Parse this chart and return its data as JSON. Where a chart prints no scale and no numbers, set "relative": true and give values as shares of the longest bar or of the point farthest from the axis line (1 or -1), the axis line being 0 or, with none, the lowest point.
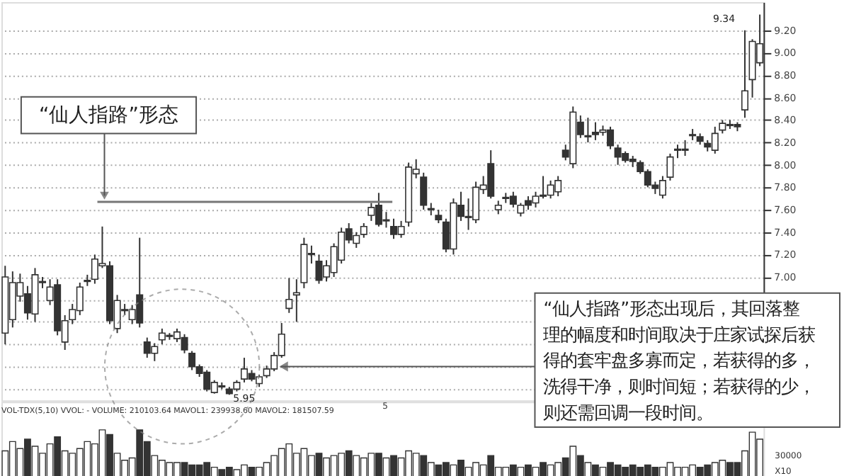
{
  "chart_data": [
    {
      "type": "candlestick",
      "color": "#333333",
      "grid": "y",
      "tick_labels": "y",
      "categories": [
        null,
        null,
        null,
        null,
        null,
        null,
        null,
        null,
        null,
        null,
        null,
        null,
        null,
        null,
        null,
        null,
        null,
        null,
        null,
        null,
        null,
        null,
        null,
        null,
        null,
        null,
        null,
        null,
        null,
        null,
        null,
        null,
        null,
        null,
        null,
        null,
        null,
        null,
        null,
        null,
        null,
        null,
        null,
        null,
        null,
        null,
        null,
        null,
        null,
        null,
        null,
        null,
        null,
        null,
        null,
        null,
        null,
        null,
        null,
        null,
        null,
        null,
        null,
        null,
        null,
        null,
        null,
        null,
        null,
        null,
        null,
        null,
        null,
        null,
        null,
        null,
        null,
        null,
        null,
        null,
        null,
        null,
        null,
        null,
        null,
        null,
        null,
        null,
        null,
        null,
        null,
        null,
        null,
        null,
        null,
        null,
        null,
        null,
        null,
        null,
        null,
        null
      ],
      "ohlc": [
        [
          6.5,
          7.1,
          6.4,
          7.0
        ],
        [
          6.62,
          7.05,
          6.55,
          6.95
        ],
        [
          6.83,
          7.03,
          6.78,
          6.95
        ],
        [
          6.85,
          6.92,
          6.62,
          6.68
        ],
        [
          6.67,
          7.08,
          6.6,
          7.02
        ],
        [
          6.95,
          7.0,
          6.9,
          6.96
        ],
        [
          6.79,
          6.98,
          6.75,
          6.91
        ],
        [
          6.93,
          6.98,
          6.48,
          6.52
        ],
        [
          6.42,
          6.66,
          6.35,
          6.61
        ],
        [
          6.62,
          6.76,
          6.58,
          6.71
        ],
        [
          6.7,
          6.95,
          6.66,
          6.91
        ],
        [
          6.96,
          7.02,
          6.92,
          6.97
        ],
        [
          6.98,
          7.2,
          6.94,
          7.16
        ],
        [
          7.1,
          7.45,
          7.08,
          7.12
        ],
        [
          7.1,
          7.14,
          6.58,
          6.61
        ],
        [
          6.54,
          6.84,
          6.5,
          6.79
        ],
        [
          6.7,
          6.76,
          6.66,
          6.71
        ],
        [
          6.62,
          6.75,
          6.58,
          6.71
        ],
        [
          6.84,
          7.35,
          6.55,
          6.59
        ],
        [
          6.42,
          6.46,
          6.28,
          6.32
        ],
        [
          6.32,
          6.41,
          6.25,
          6.38
        ],
        [
          6.44,
          6.54,
          6.4,
          6.5
        ],
        [
          6.47,
          6.5,
          6.44,
          6.48
        ],
        [
          6.45,
          6.54,
          6.42,
          6.51
        ],
        [
          6.46,
          6.49,
          6.32,
          6.35
        ],
        [
          6.32,
          6.34,
          6.17,
          6.2
        ],
        [
          6.2,
          6.22,
          6.11,
          6.14
        ],
        [
          6.15,
          6.17,
          5.98,
          6.0
        ],
        [
          5.97,
          6.08,
          5.96,
          6.06
        ],
        [
          6.03,
          6.06,
          6.0,
          6.02
        ],
        [
          6.0,
          6.02,
          5.95,
          5.96
        ],
        [
          6.0,
          6.08,
          5.98,
          6.06
        ],
        [
          6.09,
          6.28,
          6.06,
          6.18
        ],
        [
          6.14,
          6.17,
          6.07,
          6.09
        ],
        [
          6.05,
          6.13,
          6.02,
          6.11
        ],
        [
          6.12,
          6.21,
          6.1,
          6.18
        ],
        [
          6.18,
          6.33,
          6.16,
          6.3
        ],
        [
          6.3,
          6.59,
          6.28,
          6.49
        ],
        [
          6.72,
          6.99,
          6.68,
          6.8
        ],
        [
          6.84,
          6.98,
          6.6,
          6.86
        ],
        [
          6.95,
          7.35,
          6.9,
          7.29
        ],
        [
          7.2,
          7.28,
          7.12,
          7.21
        ],
        [
          7.14,
          7.2,
          6.94,
          6.97
        ],
        [
          7.0,
          7.15,
          6.96,
          7.1
        ],
        [
          7.04,
          7.3,
          7.0,
          7.27
        ],
        [
          7.15,
          7.44,
          7.12,
          7.4
        ],
        [
          7.43,
          7.48,
          7.3,
          7.33
        ],
        [
          7.3,
          7.4,
          7.26,
          7.37
        ],
        [
          7.38,
          7.48,
          7.35,
          7.45
        ],
        [
          7.55,
          7.66,
          7.5,
          7.62
        ],
        [
          7.64,
          7.75,
          7.45,
          7.47
        ],
        [
          7.5,
          7.58,
          7.44,
          7.51
        ],
        [
          7.45,
          7.52,
          7.34,
          7.38
        ],
        [
          7.38,
          7.5,
          7.35,
          7.45
        ],
        [
          7.49,
          8.02,
          7.45,
          7.98
        ],
        [
          7.92,
          8.05,
          7.88,
          7.96
        ],
        [
          7.89,
          7.93,
          7.6,
          7.64
        ],
        [
          7.6,
          7.66,
          7.55,
          7.61
        ],
        [
          7.55,
          7.6,
          7.48,
          7.51
        ],
        [
          7.49,
          7.52,
          7.22,
          7.25
        ],
        [
          7.25,
          7.7,
          7.2,
          7.66
        ],
        [
          7.64,
          7.76,
          7.5,
          7.54
        ],
        [
          7.53,
          7.7,
          7.42,
          7.54
        ],
        [
          7.51,
          7.85,
          7.48,
          7.8
        ],
        [
          7.78,
          7.9,
          7.74,
          7.82
        ],
        [
          8.01,
          8.13,
          7.7,
          7.72
        ],
        [
          7.6,
          7.68,
          7.56,
          7.64
        ],
        [
          7.7,
          7.75,
          7.66,
          7.71
        ],
        [
          7.72,
          7.76,
          7.62,
          7.65
        ],
        [
          7.57,
          7.66,
          7.54,
          7.64
        ],
        [
          7.68,
          7.72,
          7.6,
          7.64
        ],
        [
          7.66,
          7.76,
          7.62,
          7.72
        ],
        [
          7.73,
          7.9,
          7.7,
          7.72
        ],
        [
          7.73,
          7.86,
          7.7,
          7.82
        ],
        [
          7.76,
          7.9,
          7.72,
          7.86
        ],
        [
          8.13,
          8.18,
          8.04,
          8.07
        ],
        [
          8.01,
          8.52,
          7.97,
          8.47
        ],
        [
          8.38,
          8.44,
          8.24,
          8.27
        ],
        [
          8.25,
          8.42,
          8.2,
          8.26
        ],
        [
          8.29,
          8.38,
          8.22,
          8.27
        ],
        [
          8.29,
          8.35,
          8.26,
          8.31
        ],
        [
          8.31,
          8.34,
          8.14,
          8.17
        ],
        [
          8.15,
          8.18,
          8.0,
          8.07
        ],
        [
          8.1,
          8.12,
          8.02,
          8.04
        ],
        [
          8.05,
          8.08,
          7.98,
          8.03
        ],
        [
          8.02,
          8.04,
          7.92,
          7.94
        ],
        [
          7.94,
          7.96,
          7.8,
          7.82
        ],
        [
          7.82,
          7.85,
          7.74,
          7.79
        ],
        [
          7.73,
          7.9,
          7.7,
          7.86
        ],
        [
          7.89,
          8.1,
          7.86,
          8.07
        ],
        [
          8.13,
          8.18,
          8.06,
          8.14
        ],
        [
          8.13,
          8.22,
          8.08,
          8.14
        ],
        [
          8.26,
          8.32,
          8.22,
          8.27
        ],
        [
          8.25,
          8.28,
          8.18,
          8.21
        ],
        [
          8.19,
          8.22,
          8.12,
          8.16
        ],
        [
          8.13,
          8.34,
          8.1,
          8.28
        ],
        [
          8.31,
          8.4,
          8.28,
          8.37
        ],
        [
          8.35,
          8.4,
          8.32,
          8.36
        ],
        [
          8.36,
          8.38,
          8.3,
          8.34
        ],
        [
          8.49,
          9.2,
          8.42,
          8.66
        ],
        [
          8.76,
          9.12,
          8.6,
          9.1
        ],
        [
          8.91,
          9.34,
          8.88,
          9.08
        ]
      ],
      "ylim": [
        5.9,
        9.45
      ],
      "yticks": [
        {
          "value": 6.0,
          "label": null
        },
        {
          "value": 6.2,
          "label": null
        },
        {
          "value": 6.4,
          "label": null
        },
        {
          "value": 6.6,
          "label": null
        },
        {
          "value": 6.8,
          "label": null
        },
        {
          "value": 7.0,
          "label": "7.00"
        },
        {
          "value": 7.2,
          "label": "7.20"
        },
        {
          "value": 7.4,
          "label": "7.40"
        },
        {
          "value": 7.6,
          "label": "7.60"
        },
        {
          "value": 7.8,
          "label": "7.80"
        },
        {
          "value": 8.0,
          "label": "8.00"
        },
        {
          "value": 8.2,
          "label": "8.20"
        },
        {
          "value": 8.4,
          "label": "8.40"
        },
        {
          "value": 8.6,
          "label": "8.60"
        },
        {
          "value": 8.8,
          "label": "8.80"
        },
        {
          "value": 9.0,
          "label": "9.00"
        },
        {
          "value": 9.2,
          "label": "9.20"
        }
      ],
      "annotations": [
        "“仙人指路”形态",
        "“仙人指路”形态出现后，其回落整理的幅度和时间取决于庄家试探后获得的套牢盘多寡而定，若获得的多，洗得干净，则时间短；若获得的少，则还需回调一段时间。",
        "9.34",
        "5.95"
      ],
      "ref_lines": [
        {
          "axis": "y",
          "value": 7.67,
          "color": "#777777"
        }
      ]
    },
    {
      "type": "bar",
      "relative": true,
      "tick_labels": false,
      "categories": [
        null,
        null,
        null,
        null,
        null,
        null,
        null,
        null,
        null,
        null,
        null,
        null,
        null,
        null,
        null,
        null,
        null,
        null,
        null,
        null,
        null,
        null,
        null,
        null,
        null,
        null,
        null,
        null,
        null,
        null,
        null,
        null,
        null,
        null,
        null,
        null,
        null,
        null,
        null,
        null,
        null,
        null,
        null,
        null,
        null,
        null,
        null,
        null,
        null,
        null,
        null,
        null,
        null,
        null,
        null,
        null,
        null,
        null,
        null,
        null,
        null,
        null,
        null,
        null,
        null,
        null,
        null,
        null,
        null,
        null,
        null,
        null,
        null,
        null,
        null,
        null,
        null,
        null,
        null,
        null,
        null,
        null,
        null,
        null,
        null,
        null,
        null,
        null,
        null,
        null,
        null,
        null,
        null,
        null,
        null,
        null,
        null,
        null,
        null,
        null,
        null,
        null
      ],
      "values": [
        0.55,
        0.75,
        0.6,
        0.8,
        0.65,
        0.5,
        0.7,
        0.85,
        0.55,
        0.5,
        0.6,
        0.75,
        0.7,
        1.0,
        0.9,
        0.5,
        0.35,
        0.4,
        1.0,
        0.75,
        0.45,
        0.35,
        0.3,
        0.3,
        0.3,
        0.25,
        0.25,
        0.3,
        0.2,
        0.15,
        0.2,
        0.15,
        0.25,
        0.2,
        0.2,
        0.3,
        0.45,
        0.6,
        0.7,
        0.5,
        0.6,
        0.45,
        0.5,
        0.4,
        0.45,
        0.5,
        0.55,
        0.45,
        0.4,
        0.5,
        0.5,
        0.4,
        0.45,
        0.4,
        0.55,
        0.5,
        0.45,
        0.3,
        0.25,
        0.3,
        0.25,
        0.35,
        0.2,
        0.3,
        0.25,
        0.45,
        0.2,
        0.2,
        0.25,
        0.2,
        0.25,
        0.2,
        0.3,
        0.25,
        0.3,
        0.4,
        0.65,
        0.45,
        0.3,
        0.25,
        0.2,
        0.3,
        0.25,
        0.2,
        0.25,
        0.2,
        0.25,
        0.2,
        0.2,
        0.3,
        0.2,
        0.2,
        0.25,
        0.2,
        0.25,
        0.3,
        0.35,
        0.3,
        0.3,
        0.55,
        0.95,
        0.8
      ],
      "colors": [
        "#ffffff",
        "#ffffff",
        "#ffffff",
        "#333333",
        "#ffffff",
        "#ffffff",
        "#ffffff",
        "#333333",
        "#ffffff",
        "#ffffff",
        "#ffffff",
        "#ffffff",
        "#ffffff",
        "#ffffff",
        "#333333",
        "#ffffff",
        "#ffffff",
        "#ffffff",
        "#333333",
        "#333333",
        "#ffffff",
        "#ffffff",
        "#ffffff",
        "#ffffff",
        "#333333",
        "#333333",
        "#333333",
        "#333333",
        "#ffffff",
        "#333333",
        "#333333",
        "#ffffff",
        "#ffffff",
        "#333333",
        "#ffffff",
        "#ffffff",
        "#ffffff",
        "#ffffff",
        "#ffffff",
        "#ffffff",
        "#ffffff",
        "#ffffff",
        "#333333",
        "#ffffff",
        "#ffffff",
        "#ffffff",
        "#333333",
        "#ffffff",
        "#ffffff",
        "#ffffff",
        "#333333",
        "#ffffff",
        "#333333",
        "#ffffff",
        "#ffffff",
        "#ffffff",
        "#333333",
        "#ffffff",
        "#333333",
        "#333333",
        "#ffffff",
        "#333333",
        "#ffffff",
        "#ffffff",
        "#ffffff",
        "#333333",
        "#ffffff",
        "#ffffff",
        "#333333",
        "#ffffff",
        "#333333",
        "#ffffff",
        "#333333",
        "#ffffff",
        "#ffffff",
        "#333333",
        "#ffffff",
        "#333333",
        "#ffffff",
        "#333333",
        "#ffffff",
        "#333333",
        "#333333",
        "#333333",
        "#333333",
        "#333333",
        "#333333",
        "#333333",
        "#ffffff",
        "#ffffff",
        "#ffffff",
        "#ffffff",
        "#ffffff",
        "#333333",
        "#333333",
        "#ffffff",
        "#ffffff",
        "#333333",
        "#333333",
        "#ffffff",
        "#ffffff",
        "#ffffff"
      ],
      "annotations": [
        "VOL-TDX(5,10) VVOL: - VOLUME: 210103.64 MAVOL1: 239938.60 MAVOL2: 181507.59",
        "5",
        "30000",
        "X10"
      ]
    }
  ]
}
